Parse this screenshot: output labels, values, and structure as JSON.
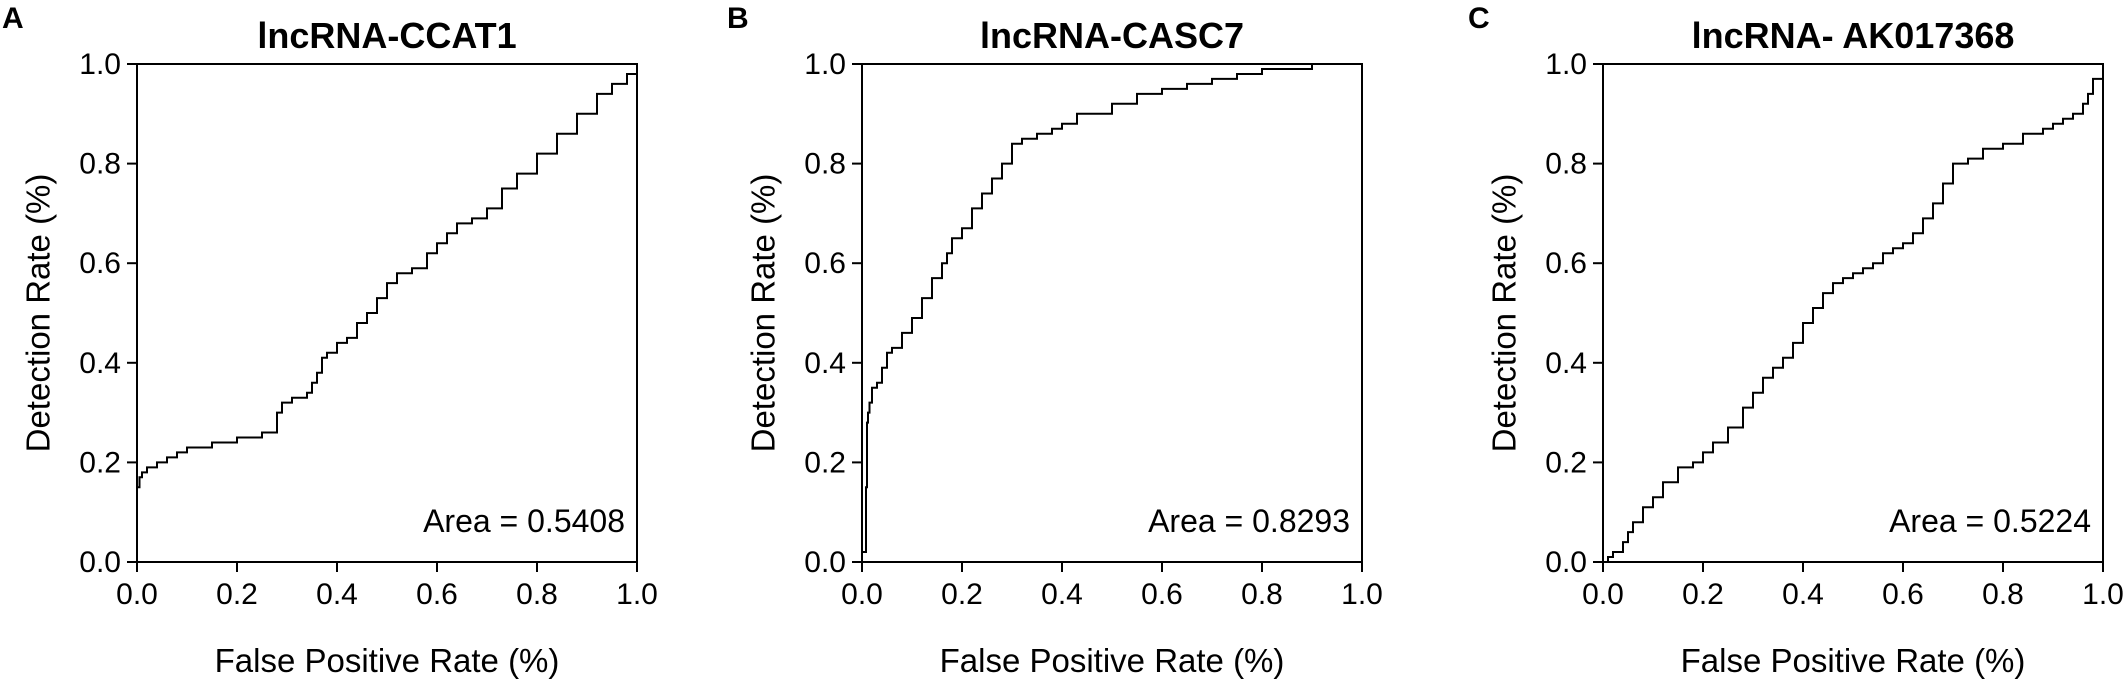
{
  "chart_data": [
    {
      "type": "line",
      "panel": "A",
      "title": "lncRNA-CCAT1",
      "xlabel": "False Positive Rate (%)",
      "ylabel": "Detection Rate (%)",
      "xlim": [
        0,
        1
      ],
      "ylim": [
        0,
        1
      ],
      "x_ticks": [
        "0.0",
        "0.2",
        "0.4",
        "0.6",
        "0.8",
        "1.0"
      ],
      "y_ticks": [
        "0.0",
        "0.2",
        "0.4",
        "0.6",
        "0.8",
        "1.0"
      ],
      "annotation": "Area = 0.5408",
      "grid": false,
      "series": [
        {
          "x": [
            0.0,
            0.0,
            0.005,
            0.01,
            0.02,
            0.04,
            0.06,
            0.08,
            0.1,
            0.15,
            0.2,
            0.25,
            0.28,
            0.28,
            0.29,
            0.31,
            0.31,
            0.33,
            0.34,
            0.35,
            0.36,
            0.37,
            0.38,
            0.4,
            0.42,
            0.44,
            0.46,
            0.48,
            0.5,
            0.52,
            0.53,
            0.55,
            0.57,
            0.58,
            0.6,
            0.62,
            0.64,
            0.67,
            0.7,
            0.73,
            0.76,
            0.8,
            0.84,
            0.88,
            0.92,
            0.95,
            0.98,
            1.0
          ],
          "y": [
            0.0,
            0.15,
            0.17,
            0.18,
            0.19,
            0.2,
            0.21,
            0.22,
            0.23,
            0.24,
            0.25,
            0.26,
            0.26,
            0.3,
            0.32,
            0.32,
            0.33,
            0.33,
            0.34,
            0.36,
            0.38,
            0.41,
            0.42,
            0.44,
            0.45,
            0.48,
            0.5,
            0.53,
            0.56,
            0.58,
            0.58,
            0.59,
            0.59,
            0.62,
            0.64,
            0.66,
            0.68,
            0.69,
            0.71,
            0.75,
            0.78,
            0.82,
            0.86,
            0.9,
            0.94,
            0.96,
            0.98,
            1.0
          ]
        }
      ]
    },
    {
      "type": "line",
      "panel": "B",
      "title": "lncRNA-CASC7",
      "xlabel": "False Positive Rate (%)",
      "ylabel": "Detection Rate (%)",
      "xlim": [
        0,
        1
      ],
      "ylim": [
        0,
        1
      ],
      "x_ticks": [
        "0.0",
        "0.2",
        "0.4",
        "0.6",
        "0.8",
        "1.0"
      ],
      "y_ticks": [
        "0.0",
        "0.2",
        "0.4",
        "0.6",
        "0.8",
        "1.0"
      ],
      "annotation": "Area = 0.8293",
      "grid": false,
      "series": [
        {
          "x": [
            0.0,
            0.0,
            0.008,
            0.01,
            0.012,
            0.015,
            0.02,
            0.03,
            0.04,
            0.05,
            0.06,
            0.08,
            0.1,
            0.12,
            0.14,
            0.16,
            0.17,
            0.18,
            0.2,
            0.22,
            0.24,
            0.26,
            0.28,
            0.3,
            0.32,
            0.35,
            0.38,
            0.4,
            0.43,
            0.46,
            0.5,
            0.55,
            0.6,
            0.65,
            0.7,
            0.75,
            0.8,
            0.85,
            0.9,
            0.95,
            1.0
          ],
          "y": [
            0.0,
            0.02,
            0.15,
            0.28,
            0.3,
            0.32,
            0.35,
            0.36,
            0.39,
            0.42,
            0.43,
            0.46,
            0.49,
            0.53,
            0.57,
            0.6,
            0.62,
            0.65,
            0.67,
            0.71,
            0.74,
            0.77,
            0.8,
            0.84,
            0.85,
            0.86,
            0.87,
            0.88,
            0.9,
            0.9,
            0.92,
            0.94,
            0.95,
            0.96,
            0.97,
            0.98,
            0.99,
            0.99,
            1.0,
            1.0,
            1.0
          ]
        }
      ]
    },
    {
      "type": "line",
      "panel": "C",
      "title": "lncRNA- AK017368",
      "xlabel": "False Positive Rate (%)",
      "ylabel": "Detection Rate (%)",
      "xlim": [
        0,
        1
      ],
      "ylim": [
        0,
        1
      ],
      "x_ticks": [
        "0.0",
        "0.2",
        "0.4",
        "0.6",
        "0.8",
        "1.0"
      ],
      "y_ticks": [
        "0.0",
        "0.2",
        "0.4",
        "0.6",
        "0.8",
        "1.0"
      ],
      "annotation": "Area = 0.5224",
      "grid": false,
      "series": [
        {
          "x": [
            0.0,
            0.01,
            0.02,
            0.04,
            0.05,
            0.06,
            0.08,
            0.1,
            0.12,
            0.15,
            0.18,
            0.2,
            0.22,
            0.25,
            0.28,
            0.3,
            0.32,
            0.34,
            0.36,
            0.38,
            0.4,
            0.42,
            0.44,
            0.46,
            0.48,
            0.5,
            0.52,
            0.54,
            0.56,
            0.58,
            0.6,
            0.62,
            0.64,
            0.66,
            0.68,
            0.7,
            0.73,
            0.76,
            0.8,
            0.84,
            0.88,
            0.9,
            0.92,
            0.94,
            0.96,
            0.97,
            0.98,
            1.0
          ],
          "y": [
            0.0,
            0.01,
            0.02,
            0.04,
            0.06,
            0.08,
            0.11,
            0.13,
            0.16,
            0.19,
            0.2,
            0.22,
            0.24,
            0.27,
            0.31,
            0.34,
            0.37,
            0.39,
            0.41,
            0.44,
            0.48,
            0.51,
            0.54,
            0.56,
            0.57,
            0.58,
            0.59,
            0.6,
            0.62,
            0.63,
            0.64,
            0.66,
            0.69,
            0.72,
            0.76,
            0.8,
            0.81,
            0.83,
            0.84,
            0.86,
            0.87,
            0.88,
            0.89,
            0.9,
            0.92,
            0.94,
            0.97,
            1.0
          ]
        }
      ]
    }
  ]
}
